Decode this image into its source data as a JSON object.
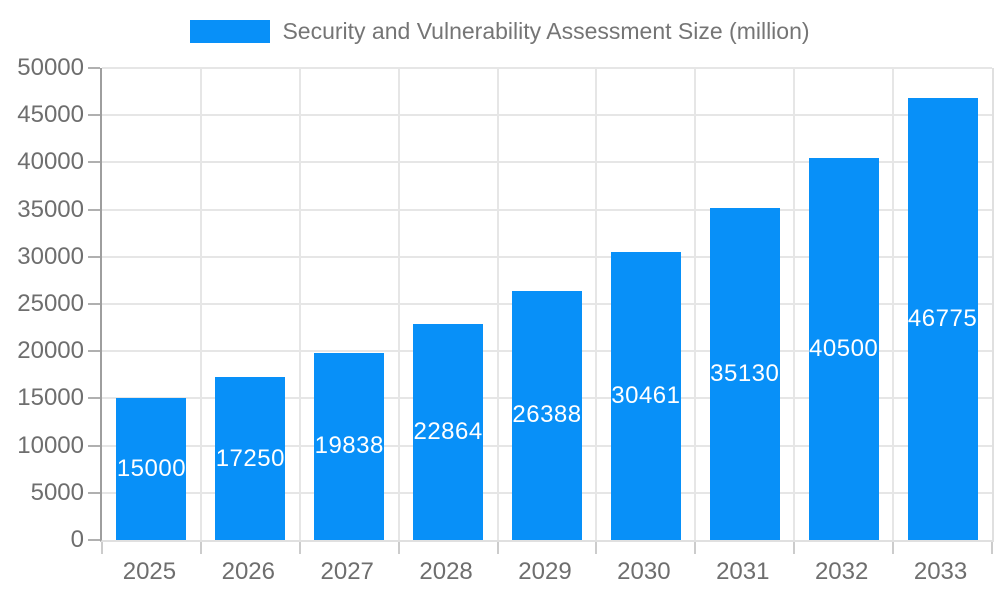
{
  "legend": {
    "label": "Security and Vulnerability Assessment Size (million)"
  },
  "chart_data": {
    "type": "bar",
    "title": "Security and Vulnerability Assessment Size (million)",
    "categories": [
      "2025",
      "2026",
      "2027",
      "2028",
      "2029",
      "2030",
      "2031",
      "2032",
      "2033"
    ],
    "values": [
      15000,
      17250,
      19838,
      22864,
      26388,
      30461,
      35130,
      40500,
      46775
    ],
    "value_labels": [
      "15000",
      "17250",
      "19838",
      "22864",
      "26388",
      "30461",
      "35130",
      "40500",
      "46775"
    ],
    "xlabel": "",
    "ylabel": "",
    "ylim": [
      0,
      50000
    ],
    "ytick_step": 5000,
    "ytick_labels": [
      "0",
      "5000",
      "10000",
      "15000",
      "20000",
      "25000",
      "30000",
      "35000",
      "40000",
      "45000",
      "50000"
    ],
    "grid": true,
    "legend_position": "top-center",
    "colors": {
      "bar": "#0890f8",
      "value_label": "#ffffff",
      "axis_text": "#6e6e6e",
      "legend_text": "#757575",
      "gridline": "#e6e6e6",
      "axis_line": "#9e9e9e"
    }
  }
}
